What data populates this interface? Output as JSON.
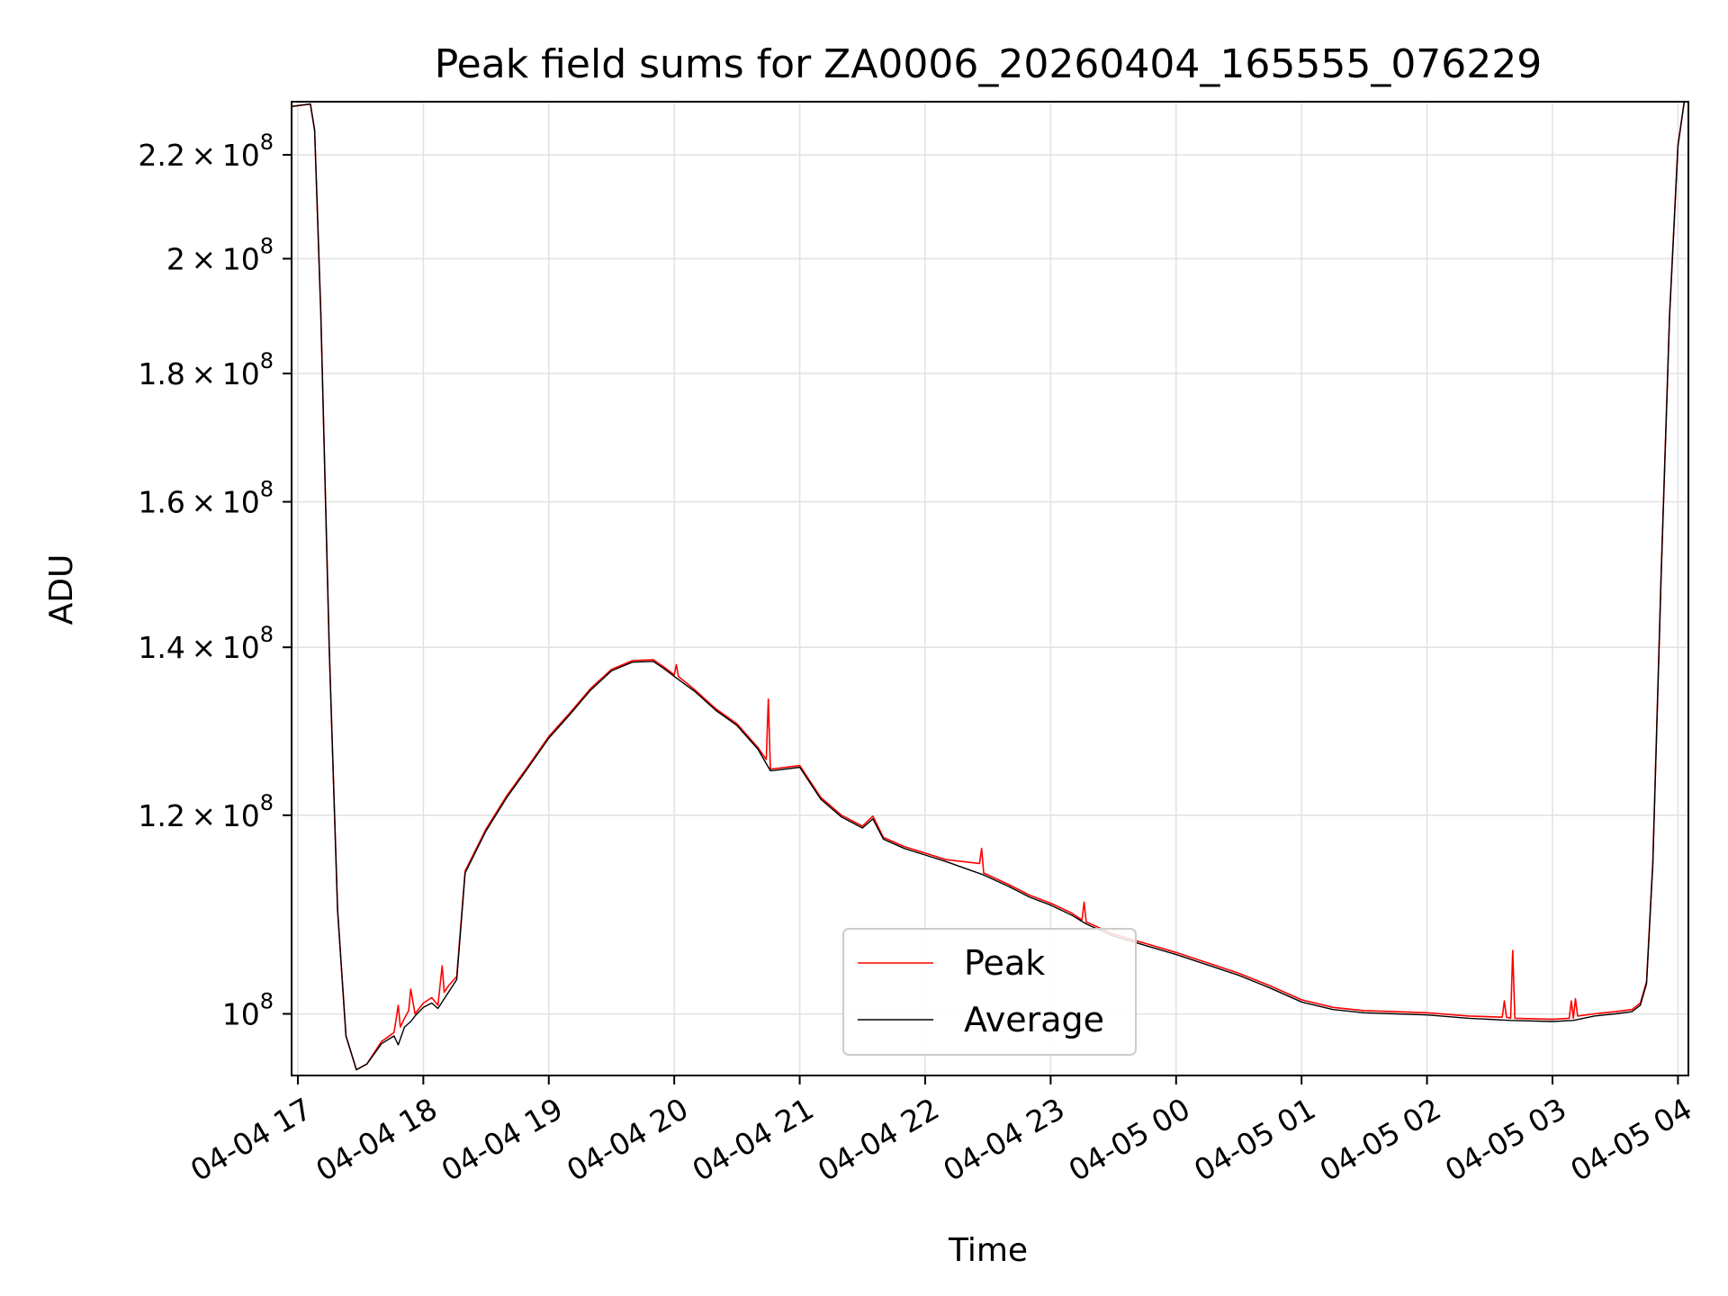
{
  "chart_data": {
    "type": "line",
    "title": "Peak field sums for ZA0006_20260404_165555_076229",
    "xlabel": "Time",
    "ylabel": "ADU",
    "x_axis": {
      "kind": "datetime",
      "range": [
        "2026-04-04 16:57",
        "2026-04-05 04:05"
      ],
      "ticks": [
        {
          "value": "2026-04-04 17:00",
          "label": "04-04 17"
        },
        {
          "value": "2026-04-04 18:00",
          "label": "04-04 18"
        },
        {
          "value": "2026-04-04 19:00",
          "label": "04-04 19"
        },
        {
          "value": "2026-04-04 20:00",
          "label": "04-04 20"
        },
        {
          "value": "2026-04-04 21:00",
          "label": "04-04 21"
        },
        {
          "value": "2026-04-04 22:00",
          "label": "04-04 22"
        },
        {
          "value": "2026-04-04 23:00",
          "label": "04-04 23"
        },
        {
          "value": "2026-04-05 00:00",
          "label": "04-05 00"
        },
        {
          "value": "2026-04-05 01:00",
          "label": "04-05 01"
        },
        {
          "value": "2026-04-05 02:00",
          "label": "04-05 02"
        },
        {
          "value": "2026-04-05 03:00",
          "label": "04-05 03"
        },
        {
          "value": "2026-04-05 04:00",
          "label": "04-05 04"
        }
      ]
    },
    "y_axis": {
      "scale": "log",
      "range": [
        94500000,
        231000000
      ],
      "ticks": [
        {
          "value": 100000000,
          "mant": "",
          "exp": "8",
          "label_base": "10"
        },
        {
          "value": 120000000,
          "mant": "1.2",
          "exp": "8",
          "label_base": "10"
        },
        {
          "value": 140000000,
          "mant": "1.4",
          "exp": "8",
          "label_base": "10"
        },
        {
          "value": 160000000,
          "mant": "1.6",
          "exp": "8",
          "label_base": "10"
        },
        {
          "value": 180000000,
          "mant": "1.8",
          "exp": "8",
          "label_base": "10"
        },
        {
          "value": 200000000,
          "mant": "2",
          "exp": "8",
          "label_base": "10"
        },
        {
          "value": 220000000,
          "mant": "2.2",
          "exp": "8",
          "label_base": "10"
        }
      ]
    },
    "grid": true,
    "legend": {
      "position": "lower-center"
    },
    "series": [
      {
        "name": "Peak",
        "color": "#ff0000",
        "points": [
          [
            "2026-04-04 16:57",
            230000000
          ],
          [
            "2026-04-04 17:06",
            230500000
          ],
          [
            "2026-04-04 17:08",
            225000000
          ],
          [
            "2026-04-04 17:11",
            190000000
          ],
          [
            "2026-04-04 17:15",
            140000000
          ],
          [
            "2026-04-04 17:19",
            110000000
          ],
          [
            "2026-04-04 17:23",
            98000000
          ],
          [
            "2026-04-04 17:28",
            95000000
          ],
          [
            "2026-04-04 17:33",
            95500000
          ],
          [
            "2026-04-04 17:40",
            97500000
          ],
          [
            "2026-04-04 17:46",
            98300000
          ],
          [
            "2026-04-04 17:48",
            100800000
          ],
          [
            "2026-04-04 17:49",
            98800000
          ],
          [
            "2026-04-04 17:51",
            99600000
          ],
          [
            "2026-04-04 17:53",
            100300000
          ],
          [
            "2026-04-04 17:54",
            102300000
          ],
          [
            "2026-04-04 17:56",
            100000000
          ],
          [
            "2026-04-04 18:00",
            101000000
          ],
          [
            "2026-04-04 18:04",
            101500000
          ],
          [
            "2026-04-04 18:07",
            100800000
          ],
          [
            "2026-04-04 18:09",
            104500000
          ],
          [
            "2026-04-04 18:10",
            102000000
          ],
          [
            "2026-04-04 18:12",
            102600000
          ],
          [
            "2026-04-04 18:16",
            103500000
          ],
          [
            "2026-04-04 18:20",
            114000000
          ],
          [
            "2026-04-04 18:30",
            118500000
          ],
          [
            "2026-04-04 18:40",
            122200000
          ],
          [
            "2026-04-04 18:50",
            125500000
          ],
          [
            "2026-04-04 19:00",
            129000000
          ],
          [
            "2026-04-04 19:10",
            131800000
          ],
          [
            "2026-04-04 19:20",
            134800000
          ],
          [
            "2026-04-04 19:30",
            137200000
          ],
          [
            "2026-04-04 19:40",
            138300000
          ],
          [
            "2026-04-04 19:50",
            138400000
          ],
          [
            "2026-04-04 19:55",
            137500000
          ],
          [
            "2026-04-04 20:00",
            136500000
          ],
          [
            "2026-04-04 20:01",
            137800000
          ],
          [
            "2026-04-04 20:02",
            136300000
          ],
          [
            "2026-04-04 20:10",
            134600000
          ],
          [
            "2026-04-04 20:20",
            132300000
          ],
          [
            "2026-04-04 20:30",
            130500000
          ],
          [
            "2026-04-04 20:40",
            127700000
          ],
          [
            "2026-04-04 20:44",
            126300000
          ],
          [
            "2026-04-04 20:45",
            133500000
          ],
          [
            "2026-04-04 20:46",
            125200000
          ],
          [
            "2026-04-04 20:50",
            125300000
          ],
          [
            "2026-04-04 21:00",
            125600000
          ],
          [
            "2026-04-04 21:10",
            122000000
          ],
          [
            "2026-04-04 21:20",
            120000000
          ],
          [
            "2026-04-04 21:30",
            118800000
          ],
          [
            "2026-04-04 21:35",
            119900000
          ],
          [
            "2026-04-04 21:40",
            117600000
          ],
          [
            "2026-04-04 21:50",
            116600000
          ],
          [
            "2026-04-04 22:00",
            115900000
          ],
          [
            "2026-04-04 22:10",
            115200000
          ],
          [
            "2026-04-04 22:26",
            114800000
          ],
          [
            "2026-04-04 22:27",
            116400000
          ],
          [
            "2026-04-04 22:28",
            113800000
          ],
          [
            "2026-04-04 22:40",
            112600000
          ],
          [
            "2026-04-04 22:50",
            111500000
          ],
          [
            "2026-04-04 23:00",
            110700000
          ],
          [
            "2026-04-04 23:10",
            109700000
          ],
          [
            "2026-04-04 23:15",
            109000000
          ],
          [
            "2026-04-04 23:16",
            110800000
          ],
          [
            "2026-04-04 23:17",
            108800000
          ],
          [
            "2026-04-04 23:30",
            107600000
          ],
          [
            "2026-04-04 23:45",
            106700000
          ],
          [
            "2026-04-05 00:00",
            105800000
          ],
          [
            "2026-04-05 00:15",
            104800000
          ],
          [
            "2026-04-05 00:30",
            103800000
          ],
          [
            "2026-04-05 00:45",
            102600000
          ],
          [
            "2026-04-05 01:00",
            101300000
          ],
          [
            "2026-04-05 01:15",
            100600000
          ],
          [
            "2026-04-05 01:30",
            100300000
          ],
          [
            "2026-04-05 01:45",
            100200000
          ],
          [
            "2026-04-05 02:00",
            100100000
          ],
          [
            "2026-04-05 02:20",
            99800000
          ],
          [
            "2026-04-05 02:36",
            99700000
          ],
          [
            "2026-04-05 02:37",
            101200000
          ],
          [
            "2026-04-05 02:38",
            99700000
          ],
          [
            "2026-04-05 02:40",
            99600000
          ],
          [
            "2026-04-05 02:41",
            106000000
          ],
          [
            "2026-04-05 02:42",
            99600000
          ],
          [
            "2026-04-05 03:00",
            99500000
          ],
          [
            "2026-04-05 03:08",
            99600000
          ],
          [
            "2026-04-05 03:09",
            101200000
          ],
          [
            "2026-04-05 03:10",
            99600000
          ],
          [
            "2026-04-05 03:11",
            101400000
          ],
          [
            "2026-04-05 03:12",
            99800000
          ],
          [
            "2026-04-05 03:20",
            100000000
          ],
          [
            "2026-04-05 03:30",
            100200000
          ],
          [
            "2026-04-05 03:38",
            100400000
          ],
          [
            "2026-04-05 03:42",
            101000000
          ],
          [
            "2026-04-05 03:45",
            103000000
          ],
          [
            "2026-04-05 03:48",
            115000000
          ],
          [
            "2026-04-05 03:52",
            150000000
          ],
          [
            "2026-04-05 03:56",
            190000000
          ],
          [
            "2026-04-05 04:00",
            222000000
          ],
          [
            "2026-04-05 04:03",
            231000000
          ],
          [
            "2026-04-05 04:05",
            231000000
          ]
        ]
      },
      {
        "name": "Average",
        "color": "#000000",
        "points": [
          [
            "2026-04-04 16:57",
            230000000
          ],
          [
            "2026-04-04 17:06",
            230500000
          ],
          [
            "2026-04-04 17:08",
            225000000
          ],
          [
            "2026-04-04 17:11",
            190000000
          ],
          [
            "2026-04-04 17:15",
            140000000
          ],
          [
            "2026-04-04 17:19",
            110000000
          ],
          [
            "2026-04-04 17:23",
            98000000
          ],
          [
            "2026-04-04 17:28",
            95000000
          ],
          [
            "2026-04-04 17:33",
            95500000
          ],
          [
            "2026-04-04 17:40",
            97300000
          ],
          [
            "2026-04-04 17:46",
            98000000
          ],
          [
            "2026-04-04 17:48",
            97200000
          ],
          [
            "2026-04-04 17:51",
            98800000
          ],
          [
            "2026-04-04 17:54",
            99300000
          ],
          [
            "2026-04-04 17:56",
            99800000
          ],
          [
            "2026-04-04 18:00",
            100600000
          ],
          [
            "2026-04-04 18:04",
            101000000
          ],
          [
            "2026-04-04 18:07",
            100500000
          ],
          [
            "2026-04-04 18:12",
            102000000
          ],
          [
            "2026-04-04 18:16",
            103200000
          ],
          [
            "2026-04-04 18:20",
            113800000
          ],
          [
            "2026-04-04 18:30",
            118300000
          ],
          [
            "2026-04-04 18:40",
            122000000
          ],
          [
            "2026-04-04 18:50",
            125300000
          ],
          [
            "2026-04-04 19:00",
            128800000
          ],
          [
            "2026-04-04 19:10",
            131600000
          ],
          [
            "2026-04-04 19:20",
            134600000
          ],
          [
            "2026-04-04 19:30",
            137000000
          ],
          [
            "2026-04-04 19:40",
            138100000
          ],
          [
            "2026-04-04 19:50",
            138200000
          ],
          [
            "2026-04-04 19:55",
            137300000
          ],
          [
            "2026-04-04 20:00",
            136300000
          ],
          [
            "2026-04-04 20:10",
            134400000
          ],
          [
            "2026-04-04 20:20",
            132100000
          ],
          [
            "2026-04-04 20:30",
            130300000
          ],
          [
            "2026-04-04 20:40",
            127500000
          ],
          [
            "2026-04-04 20:46",
            125000000
          ],
          [
            "2026-04-04 20:50",
            125100000
          ],
          [
            "2026-04-04 21:00",
            125400000
          ],
          [
            "2026-04-04 21:10",
            121800000
          ],
          [
            "2026-04-04 21:20",
            119800000
          ],
          [
            "2026-04-04 21:30",
            118600000
          ],
          [
            "2026-04-04 21:35",
            119600000
          ],
          [
            "2026-04-04 21:40",
            117400000
          ],
          [
            "2026-04-04 21:50",
            116400000
          ],
          [
            "2026-04-04 22:00",
            115700000
          ],
          [
            "2026-04-04 22:10",
            115000000
          ],
          [
            "2026-04-04 22:28",
            113600000
          ],
          [
            "2026-04-04 22:40",
            112400000
          ],
          [
            "2026-04-04 22:50",
            111300000
          ],
          [
            "2026-04-04 23:00",
            110500000
          ],
          [
            "2026-04-04 23:10",
            109500000
          ],
          [
            "2026-04-04 23:17",
            108600000
          ],
          [
            "2026-04-04 23:30",
            107400000
          ],
          [
            "2026-04-04 23:45",
            106500000
          ],
          [
            "2026-04-05 00:00",
            105600000
          ],
          [
            "2026-04-05 00:15",
            104600000
          ],
          [
            "2026-04-05 00:30",
            103600000
          ],
          [
            "2026-04-05 00:45",
            102400000
          ],
          [
            "2026-04-05 01:00",
            101100000
          ],
          [
            "2026-04-05 01:15",
            100400000
          ],
          [
            "2026-04-05 01:30",
            100100000
          ],
          [
            "2026-04-05 01:45",
            100000000
          ],
          [
            "2026-04-05 02:00",
            99900000
          ],
          [
            "2026-04-05 02:20",
            99600000
          ],
          [
            "2026-04-05 02:40",
            99400000
          ],
          [
            "2026-04-05 03:00",
            99300000
          ],
          [
            "2026-04-05 03:10",
            99400000
          ],
          [
            "2026-04-05 03:20",
            99800000
          ],
          [
            "2026-04-05 03:30",
            100000000
          ],
          [
            "2026-04-05 03:38",
            100200000
          ],
          [
            "2026-04-05 03:42",
            100800000
          ],
          [
            "2026-04-05 03:45",
            102800000
          ],
          [
            "2026-04-05 03:48",
            114800000
          ],
          [
            "2026-04-05 03:52",
            149800000
          ],
          [
            "2026-04-05 03:56",
            189800000
          ],
          [
            "2026-04-05 04:00",
            221800000
          ],
          [
            "2026-04-05 04:03",
            231000000
          ],
          [
            "2026-04-05 04:05",
            231000000
          ]
        ]
      }
    ]
  }
}
